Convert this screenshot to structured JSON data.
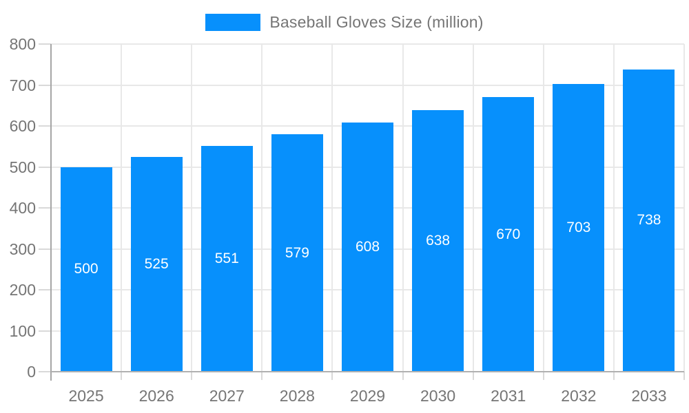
{
  "legend": {
    "label": "Baseball Gloves Size (million)"
  },
  "chart_data": {
    "type": "bar",
    "title": "Baseball Gloves Size (million)",
    "series_name": "Baseball Gloves Size (million)",
    "categories": [
      "2025",
      "2026",
      "2027",
      "2028",
      "2029",
      "2030",
      "2031",
      "2032",
      "2033"
    ],
    "values": [
      500,
      525,
      551,
      579,
      608,
      638,
      670,
      703,
      738
    ],
    "data_labels": [
      "500",
      "525",
      "551",
      "579",
      "608",
      "638",
      "670",
      "703",
      "738"
    ],
    "xlabel": "",
    "ylabel": "",
    "ylim": [
      0,
      800
    ],
    "ytick_step": 100,
    "ytick_labels": [
      "0",
      "100",
      "200",
      "300",
      "400",
      "500",
      "600",
      "700",
      "800"
    ],
    "grid": true,
    "legend_position": "top",
    "bar_color": "#0790fc",
    "data_label_color": "#ffffff",
    "axis_text_color": "#757575",
    "gridline_color": "#e8e8e8",
    "axis_line_color": "#a6a6a6",
    "background_color": "#ffffff"
  }
}
